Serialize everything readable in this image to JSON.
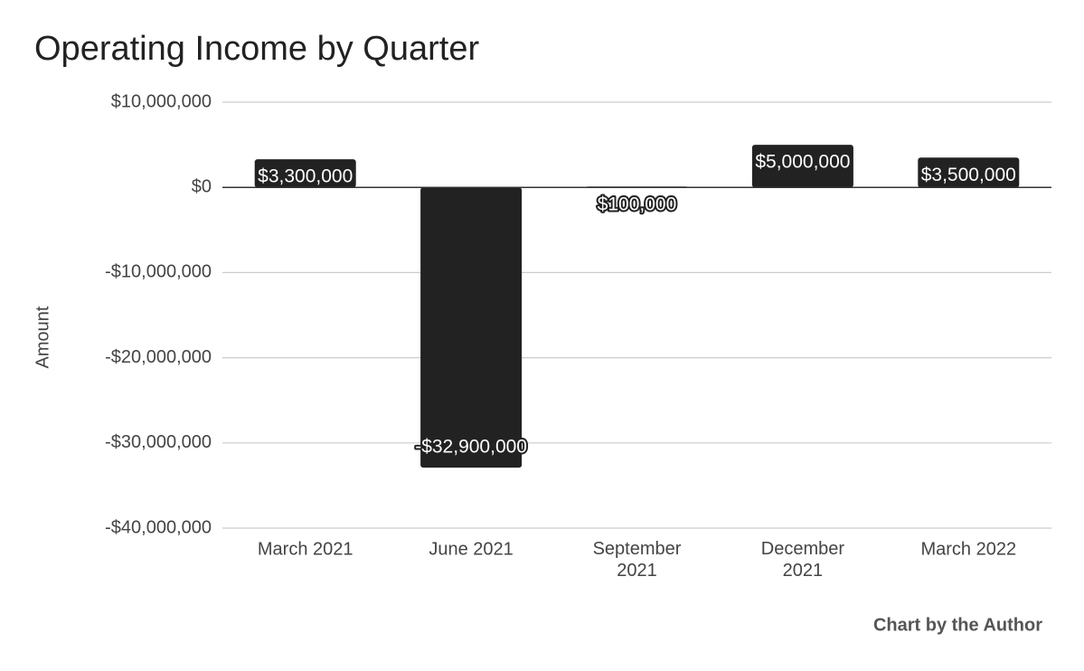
{
  "chart_data": {
    "type": "bar",
    "title": "Operating Income by Quarter",
    "y_label": "Amount",
    "note": "Chart by the Author",
    "categories": [
      "March 2021",
      "June 2021",
      "September 2021",
      "December 2021",
      "March 2022"
    ],
    "values": [
      3300000,
      -32900000,
      100000,
      5000000,
      3500000
    ],
    "value_labels": [
      "$3,300,000",
      "-$32,900,000",
      "$100,000",
      "$5,000,000",
      "$3,500,000"
    ],
    "color": "#222222",
    "ylim": [
      -40000000,
      10000000
    ],
    "yticks": [
      {
        "value": -40000000,
        "label": "-$40,000,000"
      },
      {
        "value": -30000000,
        "label": "-$30,000,000"
      },
      {
        "value": -20000000,
        "label": "-$20,000,000"
      },
      {
        "value": -10000000,
        "label": "-$10,000,000"
      },
      {
        "value": 0,
        "label": "$0"
      },
      {
        "value": 10000000,
        "label": "$10,000,000"
      }
    ],
    "grid": true
  }
}
